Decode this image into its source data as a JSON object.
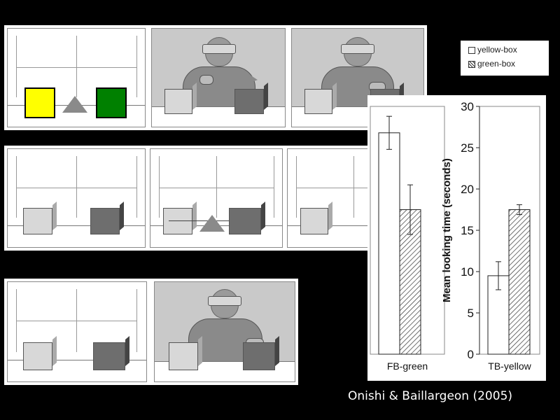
{
  "legend": {
    "items": [
      {
        "label": "yellow-box",
        "pattern": "open"
      },
      {
        "label": "green-box",
        "pattern": "hatched"
      }
    ]
  },
  "chart_data": {
    "type": "bar",
    "ylabel": "Mean looking time (seconds)",
    "ylim": [
      0,
      30
    ],
    "yticks": [
      "0",
      "5",
      "10",
      "15",
      "20",
      "25",
      "30"
    ],
    "groups": [
      {
        "label": "FB-green",
        "bars": [
          {
            "series": "yellow-box",
            "value": 26.8,
            "error": 2.0
          },
          {
            "series": "green-box",
            "value": 17.5,
            "error": 3.0
          }
        ]
      },
      {
        "label": "TB-yellow",
        "bars": [
          {
            "series": "yellow-box",
            "value": 9.5,
            "error": 1.7
          },
          {
            "series": "green-box",
            "value": 17.5,
            "error": 0.6
          }
        ]
      }
    ],
    "series": [
      {
        "name": "yellow-box",
        "values": [
          26.8,
          9.5
        ]
      },
      {
        "name": "green-box",
        "values": [
          17.5,
          17.5
        ]
      }
    ],
    "categories": [
      "FB-green",
      "TB-yellow"
    ]
  },
  "colors": {
    "yellow_box": "#ffff00",
    "green_box": "#008000",
    "background": "#000000"
  },
  "citation": "Onishi & Baillargeon (2005)"
}
